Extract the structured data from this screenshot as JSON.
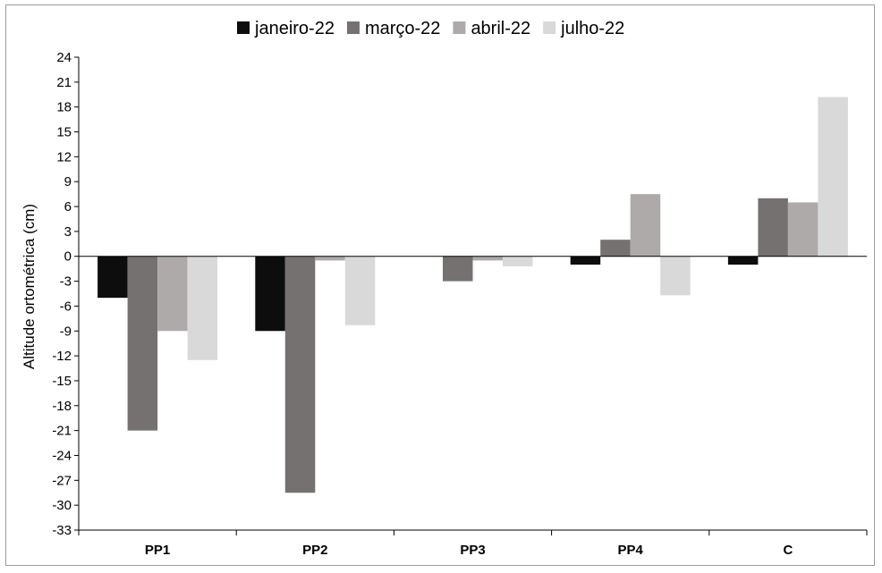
{
  "chart_data": {
    "type": "bar",
    "title": "",
    "xlabel": "",
    "ylabel": "Altitude ortométrica (cm)",
    "ylim": [
      -33,
      24
    ],
    "yticks": [
      24,
      21,
      18,
      15,
      12,
      9,
      6,
      3,
      0,
      -3,
      -6,
      -9,
      -12,
      -15,
      -18,
      -21,
      -24,
      -27,
      -30,
      -33
    ],
    "categories": [
      "PP1",
      "PP2",
      "PP3",
      "PP4",
      "C"
    ],
    "legend_position": "top",
    "grid": false,
    "series": [
      {
        "name": "janeiro-22",
        "color": "#0d0d0d",
        "values": [
          -5,
          -9,
          0,
          -1,
          -1
        ]
      },
      {
        "name": "março-22",
        "color": "#767171",
        "values": [
          -21,
          -28.5,
          -3,
          2,
          7
        ]
      },
      {
        "name": "abril-22",
        "color": "#aeaaaa",
        "values": [
          -9,
          -0.5,
          -0.5,
          7.5,
          6.5
        ]
      },
      {
        "name": "julho-22",
        "color": "#d9d9d9",
        "values": [
          -12.5,
          -8.3,
          -1.2,
          -4.7,
          19.2
        ]
      }
    ]
  }
}
